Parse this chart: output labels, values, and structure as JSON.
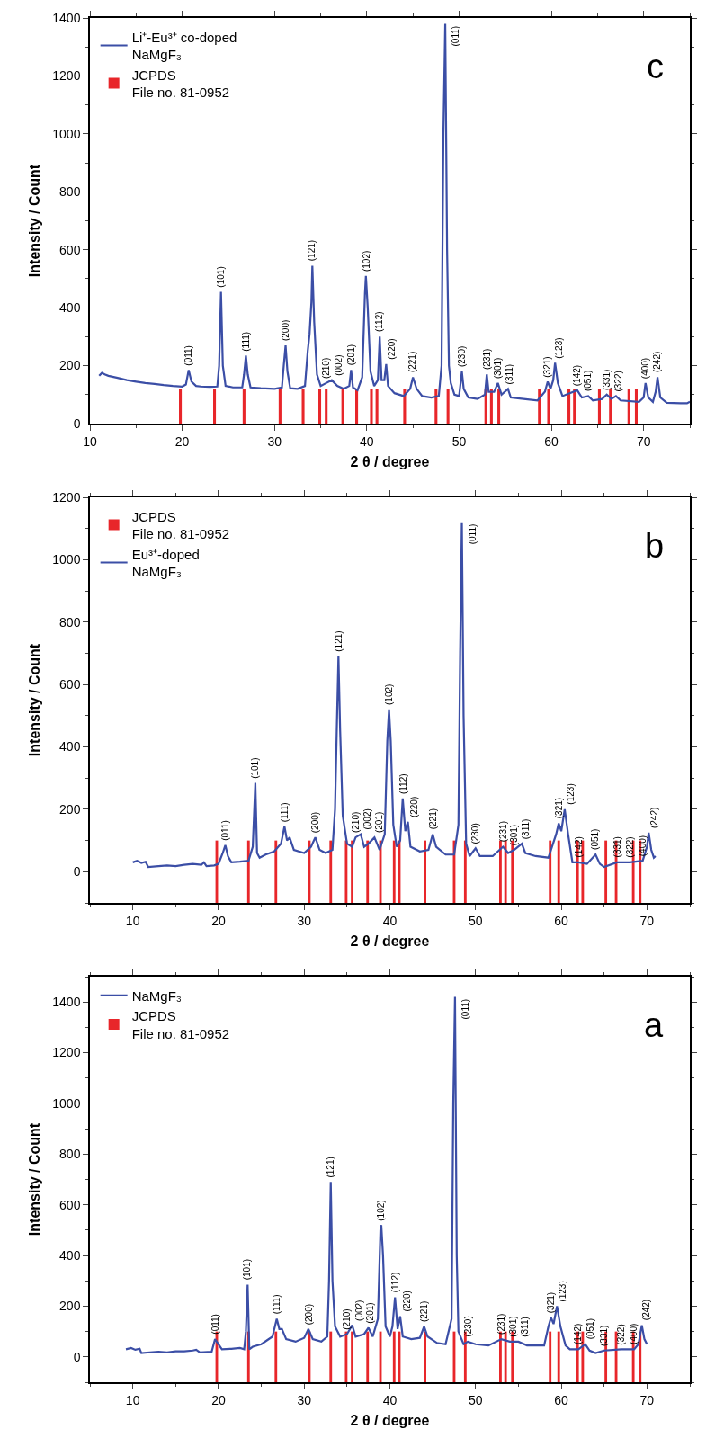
{
  "chart_data": [
    {
      "type": "line",
      "xlabel": "2 θ / degree",
      "ylabel": "Intensity / Count",
      "legend": "top left",
      "xlim": [
        10,
        75
      ],
      "xticks": [
        10,
        20,
        30,
        40,
        50,
        60,
        70
      ],
      "ylim": [
        0,
        1400
      ],
      "yticks": [
        0,
        200,
        400,
        600,
        800,
        1000,
        1200,
        1400
      ],
      "series": [
        {
          "name": "Li⁺-Eu³⁺ co-doped\nNaMgF₃",
          "color": "#3b4ea6",
          "x": [
            11,
            11.3,
            11.6,
            12,
            13,
            14,
            15,
            16,
            17,
            18,
            19,
            20,
            20.4,
            20.7,
            21.0,
            21.5,
            22,
            23,
            23.8,
            24.0,
            24.2,
            24.4,
            24.7,
            25.5,
            26.5,
            26.7,
            26.9,
            27.1,
            27.4,
            28.5,
            30,
            30.8,
            31.0,
            31.2,
            31.4,
            31.7,
            32.5,
            33.3,
            33.6,
            33.8,
            34.0,
            34.1,
            34.3,
            34.6,
            35.0,
            35.6,
            36.2,
            36.8,
            37.5,
            38.1,
            38.3,
            38.5,
            39.0,
            39.5,
            39.8,
            39.9,
            40.1,
            40.4,
            40.8,
            41.2,
            41.4,
            41.6,
            41.9,
            42.1,
            42.3,
            43,
            44,
            44.7,
            45.0,
            45.4,
            46,
            47,
            47.8,
            48.1,
            48.3,
            48.5,
            48.7,
            48.9,
            49.1,
            49.5,
            50.0,
            50.2,
            50.3,
            50.5,
            51,
            52,
            52.8,
            53.0,
            53.2,
            53.8,
            54.2,
            54.6,
            55.3,
            55.6,
            57,
            58.5,
            59.3,
            59.6,
            59.9,
            60.2,
            60.4,
            60.7,
            61.2,
            62.8,
            63.3,
            64.0,
            64.5,
            65.5,
            66.0,
            66.5,
            67.0,
            67.5,
            69.5,
            70.0,
            70.2,
            70.5,
            71.0,
            71.3,
            71.5,
            71.8,
            72.5,
            74,
            74.7,
            75
          ],
          "values": [
            165,
            175,
            170,
            165,
            158,
            150,
            145,
            140,
            137,
            133,
            130,
            128,
            135,
            185,
            145,
            130,
            128,
            127,
            128,
            200,
            455,
            200,
            130,
            125,
            125,
            170,
            235,
            170,
            125,
            122,
            120,
            125,
            200,
            270,
            180,
            122,
            120,
            130,
            250,
            310,
            420,
            545,
            350,
            170,
            130,
            140,
            150,
            130,
            120,
            130,
            185,
            125,
            115,
            160,
            450,
            510,
            400,
            180,
            130,
            150,
            300,
            150,
            150,
            205,
            130,
            105,
            95,
            120,
            160,
            120,
            95,
            90,
            95,
            200,
            1000,
            1380,
            600,
            200,
            140,
            100,
            95,
            150,
            180,
            120,
            90,
            85,
            100,
            170,
            110,
            110,
            140,
            100,
            120,
            90,
            85,
            80,
            110,
            145,
            120,
            150,
            210,
            140,
            95,
            115,
            90,
            95,
            80,
            85,
            100,
            85,
            95,
            80,
            75,
            90,
            140,
            90,
            75,
            110,
            160,
            90,
            72,
            70,
            70,
            75
          ]
        },
        {
          "name": "JCPDS\nFile no. 81-0952",
          "type": "bar",
          "color": "#e8262a",
          "x": [
            19.8,
            23.5,
            26.7,
            30.6,
            33.1,
            34.9,
            35.6,
            37.4,
            38.9,
            40.5,
            41.1,
            44.1,
            47.5,
            48.8,
            52.9,
            53.5,
            54.3,
            58.7,
            59.7,
            61.9,
            62.5,
            65.2,
            66.4,
            68.4,
            69.2
          ],
          "values": [
            120,
            120,
            120,
            120,
            120,
            120,
            120,
            120,
            120,
            120,
            120,
            120,
            120,
            120,
            120,
            120,
            120,
            120,
            120,
            120,
            120,
            120,
            120,
            120,
            120
          ]
        }
      ],
      "annotations": [
        "c",
        {
          "text": "(011)",
          "x": 20.7,
          "y": 185
        },
        {
          "text": "(101)",
          "x": 24.2,
          "y": 455
        },
        {
          "text": "(111)",
          "x": 26.9,
          "y": 235
        },
        {
          "text": "(200)",
          "x": 31.2,
          "y": 270
        },
        {
          "text": "(121)",
          "x": 34.1,
          "y": 545
        },
        {
          "text": "(210)",
          "x": 35.6,
          "y": 140
        },
        {
          "text": "(002)",
          "x": 36.2,
          "y": 150
        },
        {
          "text": "(201)",
          "x": 38.3,
          "y": 185
        },
        {
          "text": "(102)",
          "x": 39.9,
          "y": 510
        },
        {
          "text": "(112)",
          "x": 41.4,
          "y": 300
        },
        {
          "text": "(220)",
          "x": 42.1,
          "y": 205
        },
        {
          "text": "(221)",
          "x": 45.0,
          "y": 160
        },
        {
          "text": "(011)",
          "x": 48.5,
          "y": 1380
        },
        {
          "text": "(230)",
          "x": 50.3,
          "y": 180
        },
        {
          "text": "(231)",
          "x": 53.0,
          "y": 170
        },
        {
          "text": "(301)",
          "x": 54.2,
          "y": 140
        },
        {
          "text": "(311)",
          "x": 55.3,
          "y": 120
        },
        {
          "text": "(321)",
          "x": 59.6,
          "y": 145
        },
        {
          "text": "(123)",
          "x": 60.4,
          "y": 210
        },
        {
          "text": "(142)",
          "x": 62.8,
          "y": 115
        },
        {
          "text": "(051)",
          "x": 64.0,
          "y": 95
        },
        {
          "text": "(331)",
          "x": 66.0,
          "y": 100
        },
        {
          "text": "(322)",
          "x": 67.0,
          "y": 95
        },
        {
          "text": "(400)",
          "x": 70.2,
          "y": 140
        },
        {
          "text": "(242)",
          "x": 71.5,
          "y": 160
        }
      ]
    },
    {
      "type": "line",
      "xlabel": "2 θ / degree",
      "ylabel": "Intensity / Count",
      "legend": "top left",
      "xlim": [
        5,
        75
      ],
      "xticks": [
        10,
        20,
        30,
        40,
        50,
        60,
        70
      ],
      "ylim": [
        -100,
        1200
      ],
      "yticks": [
        0,
        200,
        400,
        600,
        800,
        1000,
        1200
      ],
      "series": [
        {
          "name": "JCPDS\nFile no. 81-0952",
          "type": "bar",
          "color": "#e8262a",
          "x": [
            19.8,
            23.5,
            26.7,
            30.6,
            33.1,
            34.9,
            35.6,
            37.4,
            38.9,
            40.5,
            41.1,
            44.1,
            47.5,
            48.8,
            52.9,
            53.5,
            54.3,
            58.7,
            59.7,
            61.9,
            62.5,
            65.2,
            66.4,
            68.4,
            69.2
          ],
          "base": [
            -100,
            -100,
            -100,
            -100,
            -100,
            -100,
            -100,
            -100,
            -100,
            -100,
            -100,
            -100,
            -100,
            -100,
            -100,
            -100,
            -100,
            -100,
            -100,
            -100,
            -100,
            -100,
            -100,
            -100,
            -100
          ],
          "values": [
            200,
            200,
            200,
            200,
            200,
            200,
            200,
            200,
            200,
            200,
            200,
            200,
            200,
            200,
            200,
            200,
            200,
            200,
            200,
            200,
            200,
            200,
            200,
            200,
            200
          ]
        },
        {
          "name": "Eu³⁺-doped\nNaMgF₃",
          "color": "#3b4ea6",
          "x": [
            10,
            10.5,
            11,
            11.5,
            11.8,
            13,
            14,
            15,
            16,
            17,
            18,
            18.3,
            18.6,
            19.5,
            20.0,
            20.5,
            20.8,
            21.1,
            21.5,
            22.5,
            23.5,
            24.0,
            24.3,
            24.5,
            24.8,
            25.5,
            26.5,
            27.3,
            27.7,
            28.0,
            28.3,
            28.8,
            30,
            30.8,
            31.3,
            31.8,
            32.5,
            33.3,
            33.6,
            33.8,
            34.0,
            34.2,
            34.5,
            35.0,
            35.6,
            36.0,
            36.6,
            37.0,
            37.5,
            38.2,
            38.8,
            39.4,
            39.7,
            39.9,
            40.1,
            40.4,
            40.8,
            41.2,
            41.5,
            41.8,
            42.1,
            42.4,
            43.5,
            44.5,
            45.0,
            45.4,
            46.5,
            47.5,
            48.0,
            48.2,
            48.4,
            48.6,
            48.9,
            49.3,
            50.0,
            50.5,
            52,
            53.2,
            53.8,
            54.5,
            55.4,
            55.8,
            57,
            58.5,
            59.4,
            59.7,
            60.0,
            60.4,
            60.8,
            61.3,
            62,
            63,
            64.0,
            64.5,
            65,
            66.5,
            68,
            69.5,
            70.0,
            70.2,
            70.5,
            70.8,
            71
          ],
          "values": [
            30,
            35,
            28,
            32,
            15,
            18,
            20,
            18,
            22,
            25,
            22,
            30,
            18,
            20,
            25,
            60,
            85,
            50,
            30,
            32,
            35,
            80,
            285,
            60,
            45,
            55,
            65,
            90,
            145,
            100,
            110,
            70,
            60,
            80,
            110,
            70,
            60,
            70,
            200,
            450,
            690,
            450,
            180,
            90,
            80,
            110,
            120,
            80,
            90,
            110,
            70,
            120,
            420,
            520,
            420,
            150,
            80,
            100,
            235,
            130,
            160,
            80,
            65,
            70,
            120,
            80,
            55,
            55,
            150,
            700,
            1120,
            500,
            90,
            50,
            75,
            50,
            50,
            80,
            60,
            70,
            90,
            60,
            50,
            45,
            120,
            155,
            130,
            200,
            120,
            30,
            30,
            25,
            55,
            25,
            15,
            30,
            30,
            35,
            80,
            125,
            70,
            45,
            50
          ]
        }
      ],
      "annotations": [
        "b",
        {
          "text": "(011)",
          "x": 20.8,
          "y": 85
        },
        {
          "text": "(101)",
          "x": 24.3,
          "y": 285
        },
        {
          "text": "(111)",
          "x": 27.7,
          "y": 145
        },
        {
          "text": "(200)",
          "x": 31.3,
          "y": 110
        },
        {
          "text": "(121)",
          "x": 34.0,
          "y": 690
        },
        {
          "text": "(210)",
          "x": 36.0,
          "y": 110
        },
        {
          "text": "(002)",
          "x": 36.6,
          "y": 120
        },
        {
          "text": "(201)",
          "x": 38.2,
          "y": 110
        },
        {
          "text": "(102)",
          "x": 39.9,
          "y": 520
        },
        {
          "text": "(112)",
          "x": 41.5,
          "y": 235
        },
        {
          "text": "(220)",
          "x": 42.1,
          "y": 160
        },
        {
          "text": "(221)",
          "x": 45.0,
          "y": 120
        },
        {
          "text": "(011)",
          "x": 48.4,
          "y": 1120
        },
        {
          "text": "(230)",
          "x": 50.0,
          "y": 75
        },
        {
          "text": "(231)",
          "x": 53.2,
          "y": 80
        },
        {
          "text": "(301)",
          "x": 54.5,
          "y": 70
        },
        {
          "text": "(311)",
          "x": 55.4,
          "y": 90
        },
        {
          "text": "(321)",
          "x": 59.7,
          "y": 155
        },
        {
          "text": "(123)",
          "x": 60.4,
          "y": 200
        },
        {
          "text": "(142)",
          "x": 62,
          "y": 30
        },
        {
          "text": "(051)",
          "x": 64.0,
          "y": 55
        },
        {
          "text": "(331)",
          "x": 66.5,
          "y": 30
        },
        {
          "text": "(322)",
          "x": 68,
          "y": 30
        },
        {
          "text": "(400)",
          "x": 69.5,
          "y": 35
        },
        {
          "text": "(242)",
          "x": 70.2,
          "y": 125
        }
      ]
    },
    {
      "type": "line",
      "xlabel": "2 θ / degree",
      "ylabel": "Intensity / Count",
      "legend": "top left",
      "xlim": [
        5,
        75
      ],
      "xticks": [
        10,
        20,
        30,
        40,
        50,
        60,
        70
      ],
      "ylim": [
        -100,
        1500
      ],
      "yticks": [
        0,
        200,
        400,
        600,
        800,
        1000,
        1200,
        1400
      ],
      "series": [
        {
          "name": "NaMgF₃",
          "color": "#3b4ea6",
          "x": [
            9.2,
            9.8,
            10.3,
            10.8,
            11.0,
            12,
            13,
            14,
            15,
            16,
            17,
            17.4,
            17.8,
            19.2,
            19.6,
            19.9,
            20.4,
            21.5,
            22.5,
            23.0,
            23.2,
            23.4,
            23.6,
            24,
            25,
            26.3,
            26.8,
            27.1,
            27.4,
            27.9,
            29,
            30.0,
            30.5,
            31,
            32,
            32.7,
            32.9,
            33.1,
            33.3,
            33.6,
            34.2,
            35.0,
            35.6,
            36.0,
            37.0,
            37.5,
            38.0,
            38.6,
            38.9,
            39.0,
            39.2,
            39.5,
            40.0,
            40.3,
            40.6,
            40.9,
            41.2,
            41.5,
            42.5,
            43.5,
            44.0,
            44.4,
            45.5,
            46.5,
            47.2,
            47.4,
            47.6,
            47.8,
            48.0,
            48.6,
            49.1,
            50,
            51.5,
            53.0,
            54.0,
            55.0,
            56,
            58.0,
            58.5,
            58.8,
            59.1,
            59.5,
            59.9,
            60.5,
            61,
            62,
            62.8,
            63.3,
            64,
            65,
            67,
            68.5,
            69.0,
            69.4,
            69.7,
            70.0
          ],
          "values": [
            30,
            35,
            28,
            32,
            15,
            18,
            20,
            18,
            22,
            22,
            25,
            28,
            18,
            20,
            70,
            55,
            30,
            32,
            35,
            30,
            100,
            285,
            30,
            40,
            50,
            80,
            150,
            110,
            110,
            70,
            60,
            75,
            110,
            70,
            60,
            80,
            300,
            690,
            300,
            120,
            80,
            90,
            125,
            80,
            90,
            115,
            80,
            150,
            500,
            520,
            400,
            120,
            80,
            120,
            235,
            110,
            160,
            80,
            70,
            75,
            120,
            80,
            55,
            50,
            150,
            1000,
            1420,
            400,
            100,
            50,
            60,
            50,
            45,
            70,
            60,
            60,
            45,
            45,
            120,
            155,
            130,
            200,
            120,
            45,
            30,
            30,
            50,
            25,
            15,
            25,
            30,
            30,
            50,
            125,
            70,
            50
          ]
        },
        {
          "name": "JCPDS\nFile no. 81-0952",
          "type": "bar",
          "color": "#e8262a",
          "x": [
            19.8,
            23.5,
            26.7,
            30.6,
            33.1,
            34.9,
            35.6,
            37.4,
            38.9,
            40.5,
            41.1,
            44.1,
            47.5,
            48.8,
            52.9,
            53.5,
            54.3,
            58.7,
            59.7,
            61.9,
            62.5,
            65.2,
            66.4,
            68.4,
            69.2
          ],
          "base": [
            -100,
            -100,
            -100,
            -100,
            -100,
            -100,
            -100,
            -100,
            -100,
            -100,
            -100,
            -100,
            -100,
            -100,
            -100,
            -100,
            -100,
            -100,
            -100,
            -100,
            -100,
            -100,
            -100,
            -100,
            -100
          ],
          "values": [
            200,
            200,
            200,
            200,
            200,
            200,
            200,
            200,
            200,
            200,
            200,
            200,
            200,
            200,
            200,
            200,
            200,
            200,
            200,
            200,
            200,
            200,
            200,
            200,
            200
          ]
        }
      ],
      "annotations": [
        "a",
        {
          "text": "(011)",
          "x": 19.6,
          "y": 70
        },
        {
          "text": "(101)",
          "x": 23.4,
          "y": 285
        },
        {
          "text": "(111)",
          "x": 26.8,
          "y": 150
        },
        {
          "text": "(200)",
          "x": 30.5,
          "y": 110
        },
        {
          "text": "(121)",
          "x": 33.1,
          "y": 690
        },
        {
          "text": "(210)",
          "x": 35.0,
          "y": 90
        },
        {
          "text": "(002)",
          "x": 35.6,
          "y": 125
        },
        {
          "text": "(201)",
          "x": 37.5,
          "y": 115
        },
        {
          "text": "(102)",
          "x": 39.0,
          "y": 520
        },
        {
          "text": "(112)",
          "x": 40.6,
          "y": 235
        },
        {
          "text": "(220)",
          "x": 41.2,
          "y": 160
        },
        {
          "text": "(221)",
          "x": 44.0,
          "y": 120
        },
        {
          "text": "(011)",
          "x": 47.6,
          "y": 1420
        },
        {
          "text": "(230)",
          "x": 49.1,
          "y": 60
        },
        {
          "text": "(231)",
          "x": 53.0,
          "y": 70
        },
        {
          "text": "(301)",
          "x": 54.0,
          "y": 60
        },
        {
          "text": "(311)",
          "x": 55.0,
          "y": 60
        },
        {
          "text": "(321)",
          "x": 58.8,
          "y": 155
        },
        {
          "text": "(123)",
          "x": 59.5,
          "y": 200
        },
        {
          "text": "(142)",
          "x": 62,
          "y": 30
        },
        {
          "text": "(051)",
          "x": 62.8,
          "y": 50
        },
        {
          "text": "(331)",
          "x": 65,
          "y": 25
        },
        {
          "text": "(322)",
          "x": 67,
          "y": 30
        },
        {
          "text": "(400)",
          "x": 68.5,
          "y": 30
        },
        {
          "text": "(242)",
          "x": 69.4,
          "y": 125
        }
      ]
    }
  ]
}
